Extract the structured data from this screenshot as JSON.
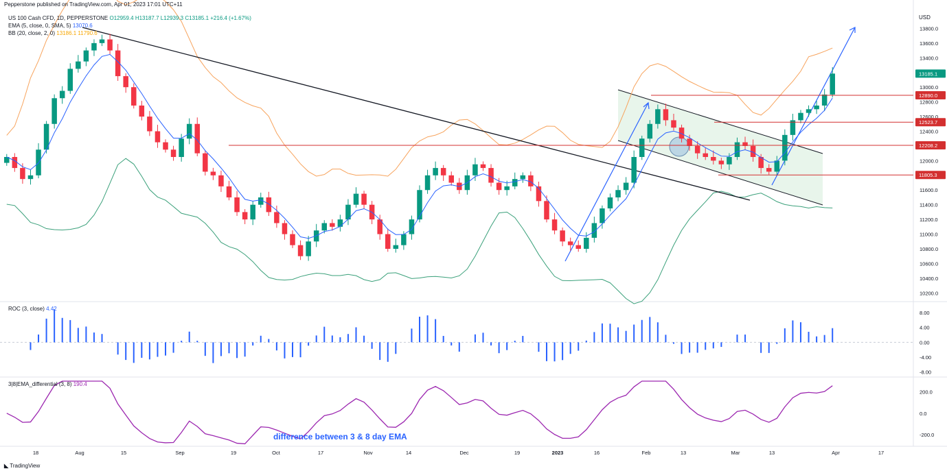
{
  "header": {
    "publisher": "Pepperstone published on TradingView.com, Apr 01, 2023 17:01 UTC+11",
    "symbol_line": "US 100 Cash CFD, 1D, PEPPERSTONE",
    "ohlc": "O12959.4  H13187.7  L12939.3  C13185.1  +216.4 (+1.67%)",
    "ema_label": "EMA (5, close, 0, SMA, 5)",
    "ema_value": "13070.6",
    "bb_label": "BB (20, close, 2, 0)",
    "bb_values": "13186.1  11790.6"
  },
  "roc_header": {
    "label": "ROC (3, close)",
    "value": "4.42"
  },
  "ema_diff_header": {
    "label": "3|8|EMA_differential (3, 8)",
    "value": "190.4"
  },
  "annotation": "difference between 3 & 8 day EMA",
  "branding": "TradingView",
  "currency": "USD",
  "colors": {
    "up": "#089981",
    "down": "#f23645",
    "ema": "#2962ff",
    "bb_upper": "#f7a35c",
    "bb_lower": "#3aa07a",
    "level": "#d32f2f",
    "roc": "#2962ff",
    "diff": "#9c27b0"
  },
  "chart_data": {
    "type": "candlestick",
    "price_axis": {
      "ylim": [
        10100,
        14000
      ],
      "ticks": [
        "10200.0",
        "10400.0",
        "10600.0",
        "10800.0",
        "11000.0",
        "11200.0",
        "11400.0",
        "11600.0",
        "11800.0",
        "12000.0",
        "12200.0",
        "12400.0",
        "12600.0",
        "12800.0",
        "13000.0",
        "13200.0",
        "13400.0",
        "13600.0",
        "13800.0"
      ]
    },
    "price_labels": [
      "13185.1",
      "12890.0",
      "12523.7",
      "12208.2",
      "11805.3"
    ],
    "levels": [
      12890.0,
      12523.7,
      12208.2,
      11805.3
    ],
    "x_labels": [
      "18",
      "Aug",
      "15",
      "Sep",
      "19",
      "Oct",
      "17",
      "Nov",
      "14",
      "Dec",
      "19",
      "2023",
      "16",
      "Feb",
      "13",
      "Mar",
      "13",
      "Apr",
      "17"
    ],
    "roc_axis": {
      "ylim": [
        -9,
        9.5
      ],
      "ticks": [
        "8.00",
        "4.00",
        "0.00",
        "-4.00",
        "-8.00"
      ]
    },
    "diff_axis": {
      "ylim": [
        -290,
        300
      ],
      "ticks": [
        "200.0",
        "0.0",
        "-200.0"
      ]
    },
    "close_path": [
      12050,
      11900,
      11750,
      11800,
      12150,
      12500,
      12850,
      12950,
      13250,
      13350,
      13500,
      13600,
      13650,
      13500,
      13150,
      13000,
      12750,
      12600,
      12400,
      12250,
      12150,
      12050,
      12300,
      12500,
      12100,
      11850,
      11800,
      11650,
      11500,
      11300,
      11200,
      11400,
      11500,
      11300,
      11150,
      11000,
      10850,
      10700,
      10900,
      11050,
      11150,
      11100,
      11200,
      11400,
      11550,
      11400,
      11200,
      11000,
      10800,
      10850,
      11000,
      11200,
      11600,
      11800,
      11900,
      11800,
      11700,
      11600,
      11800,
      11950,
      11900,
      11700,
      11600,
      11650,
      11750,
      11800,
      11650,
      11450,
      11200,
      11050,
      10900,
      10850,
      10800,
      10950,
      11150,
      11350,
      11500,
      11600,
      11700,
      12050,
      12300,
      12500,
      12700,
      12550,
      12450,
      12300,
      12200,
      12100,
      12050,
      12000,
      11950,
      12050,
      12250,
      12200,
      12050,
      11900,
      11850,
      12000,
      12350,
      12550,
      12650,
      12700,
      12750,
      12900,
      13185
    ]
  }
}
